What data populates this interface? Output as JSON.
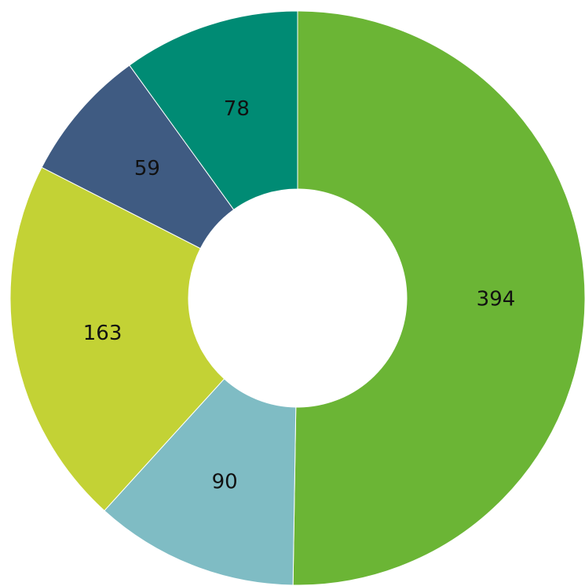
{
  "chart_data": {
    "type": "donut",
    "values": [
      394,
      90,
      163,
      59,
      78
    ],
    "colors": [
      "#6bb535",
      "#7fbcc4",
      "#c3d235",
      "#3f5b82",
      "#008b74"
    ]
  }
}
